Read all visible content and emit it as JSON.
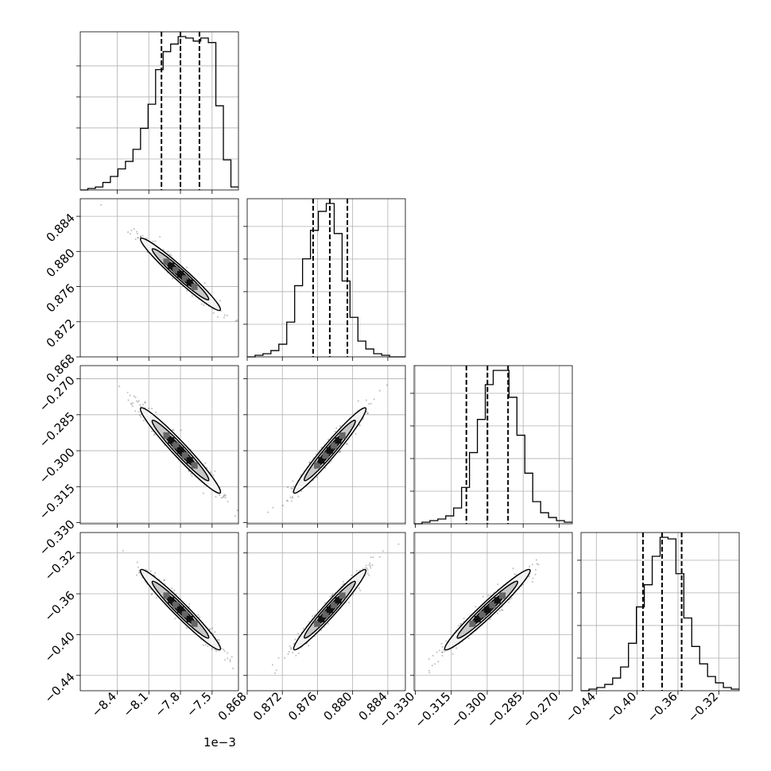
{
  "chart_data": {
    "type": "corner",
    "grid": true,
    "params": [
      {
        "range": [
          -0.00875,
          -0.00725
        ],
        "ticks": [
          -8.4,
          -8.1,
          -7.8,
          -7.5
        ],
        "tick_labels": [
          "−8.4",
          "−8.1",
          "−7.8",
          "−7.5"
        ],
        "offset_text": "1e−3"
      },
      {
        "range": [
          0.868,
          0.886
        ],
        "ticks": [
          0.868,
          0.872,
          0.876,
          0.88,
          0.884
        ],
        "tick_labels": [
          "0.868",
          "0.872",
          "0.876",
          "0.880",
          "0.884"
        ]
      },
      {
        "range": [
          -0.3305,
          -0.2645
        ],
        "ticks": [
          -0.33,
          -0.315,
          -0.3,
          -0.285,
          -0.27
        ],
        "tick_labels": [
          "−0.330",
          "−0.315",
          "−0.300",
          "−0.285",
          "−0.270"
        ]
      },
      {
        "range": [
          -0.455,
          -0.3
        ],
        "ticks": [
          -0.44,
          -0.4,
          -0.36,
          -0.32
        ],
        "tick_labels": [
          "−0.44",
          "−0.40",
          "−0.36",
          "−0.32"
        ]
      }
    ],
    "quantiles": [
      [
        -0.00798,
        -0.0078,
        -0.00762
      ],
      [
        0.8755,
        0.8774,
        0.8794
      ],
      [
        -0.3087,
        -0.2999,
        -0.2913
      ],
      [
        -0.3943,
        -0.3756,
        -0.3564
      ]
    ],
    "histograms": [
      [
        0,
        1,
        2,
        5,
        9,
        14,
        19,
        27,
        41,
        57,
        80,
        92,
        97,
        102,
        101,
        99,
        101,
        98,
        56,
        20,
        2
      ],
      [
        0,
        1,
        2,
        4,
        8,
        22,
        45,
        62,
        80,
        92,
        97,
        78,
        48,
        25,
        10,
        5,
        2,
        1,
        0,
        0
      ],
      [
        0,
        1,
        2,
        3,
        5,
        10,
        23,
        45,
        66,
        88,
        97,
        97,
        80,
        56,
        32,
        14,
        7,
        4,
        2,
        1
      ],
      [
        0,
        1,
        2,
        4,
        8,
        15,
        30,
        53,
        67,
        85,
        97,
        96,
        74,
        46,
        28,
        17,
        9,
        5,
        2,
        1
      ]
    ]
  }
}
